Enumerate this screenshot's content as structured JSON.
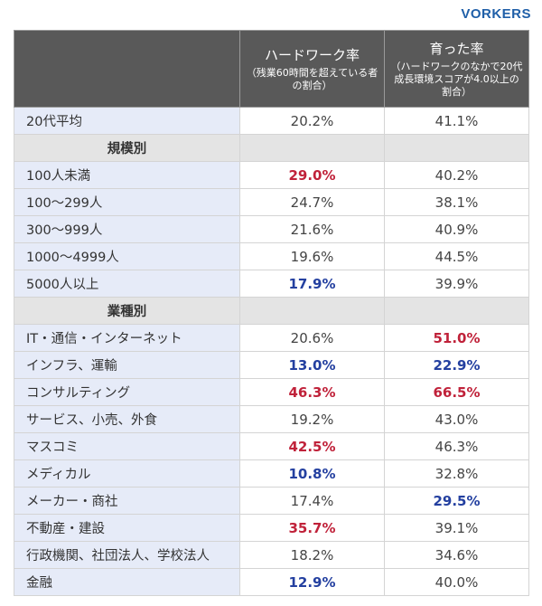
{
  "brand": "VORKERS",
  "header": {
    "col1_title": "ハードワーク率",
    "col1_note": "（残業60時間を超えている者の割合）",
    "col2_title": "育った率",
    "col2_note": "（ハードワークのなかで20代成長環境スコアが4.0以上の割合）"
  },
  "rows": [
    {
      "type": "data",
      "label": "20代平均",
      "v1": "20.2%",
      "v1_style": "normal",
      "v2": "41.1%",
      "v2_style": "normal"
    },
    {
      "type": "section",
      "label": "規模別"
    },
    {
      "type": "data",
      "label": "100人未満",
      "v1": "29.0%",
      "v1_style": "red",
      "v2": "40.2%",
      "v2_style": "normal"
    },
    {
      "type": "data",
      "label": "100〜299人",
      "v1": "24.7%",
      "v1_style": "normal",
      "v2": "38.1%",
      "v2_style": "normal"
    },
    {
      "type": "data",
      "label": "300〜999人",
      "v1": "21.6%",
      "v1_style": "normal",
      "v2": "40.9%",
      "v2_style": "normal"
    },
    {
      "type": "data",
      "label": "1000〜4999人",
      "v1": "19.6%",
      "v1_style": "normal",
      "v2": "44.5%",
      "v2_style": "normal"
    },
    {
      "type": "data",
      "label": "5000人以上",
      "v1": "17.9%",
      "v1_style": "blue",
      "v2": "39.9%",
      "v2_style": "normal"
    },
    {
      "type": "section",
      "label": "業種別"
    },
    {
      "type": "data",
      "label": "IT・通信・インターネット",
      "v1": "20.6%",
      "v1_style": "normal",
      "v2": "51.0%",
      "v2_style": "red"
    },
    {
      "type": "data",
      "label": "インフラ、運輸",
      "v1": "13.0%",
      "v1_style": "blue",
      "v2": "22.9%",
      "v2_style": "blue"
    },
    {
      "type": "data",
      "label": "コンサルティング",
      "v1": "46.3%",
      "v1_style": "red",
      "v2": "66.5%",
      "v2_style": "red"
    },
    {
      "type": "data",
      "label": "サービス、小売、外食",
      "v1": "19.2%",
      "v1_style": "normal",
      "v2": "43.0%",
      "v2_style": "normal"
    },
    {
      "type": "data",
      "label": "マスコミ",
      "v1": "42.5%",
      "v1_style": "red",
      "v2": "46.3%",
      "v2_style": "normal"
    },
    {
      "type": "data",
      "label": "メディカル",
      "v1": "10.8%",
      "v1_style": "blue",
      "v2": "32.8%",
      "v2_style": "normal"
    },
    {
      "type": "data",
      "label": "メーカー・商社",
      "v1": "17.4%",
      "v1_style": "normal",
      "v2": "29.5%",
      "v2_style": "blue"
    },
    {
      "type": "data",
      "label": "不動産・建設",
      "v1": "35.7%",
      "v1_style": "red",
      "v2": "39.1%",
      "v2_style": "normal"
    },
    {
      "type": "data",
      "label": "行政機関、社団法人、学校法人",
      "v1": "18.2%",
      "v1_style": "normal",
      "v2": "34.6%",
      "v2_style": "normal"
    },
    {
      "type": "data",
      "label": "金融",
      "v1": "12.9%",
      "v1_style": "blue",
      "v2": "40.0%",
      "v2_style": "normal"
    }
  ],
  "colors": {
    "highlight_high": "#c0223a",
    "highlight_low": "#2440a0",
    "header_bg": "#595959",
    "label_bg": "#e6ebf8",
    "section_bg": "#e4e4e4",
    "brand": "#1f5fa8"
  }
}
